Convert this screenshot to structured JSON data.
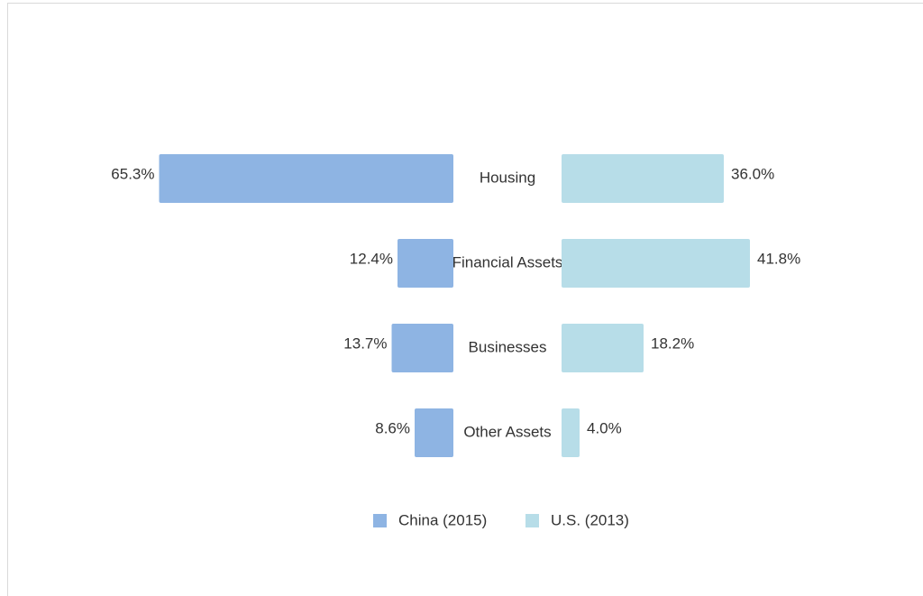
{
  "chart_data": {
    "type": "bar",
    "categories": [
      "Housing",
      "Financial Assets",
      "Businesses",
      "Other Assets"
    ],
    "series": [
      {
        "name": "China (2015)",
        "color": "#8eb4e3",
        "values": [
          65.3,
          12.4,
          13.7,
          8.6
        ],
        "value_labels": [
          "65.3%",
          "12.4%",
          "13.7%",
          "8.6%"
        ]
      },
      {
        "name": "U.S. (2013)",
        "color": "#b7dde8",
        "values": [
          36.0,
          41.8,
          18.2,
          4.0
        ],
        "value_labels": [
          "36.0%",
          "41.8%",
          "18.2%",
          "4.0%"
        ]
      }
    ]
  }
}
